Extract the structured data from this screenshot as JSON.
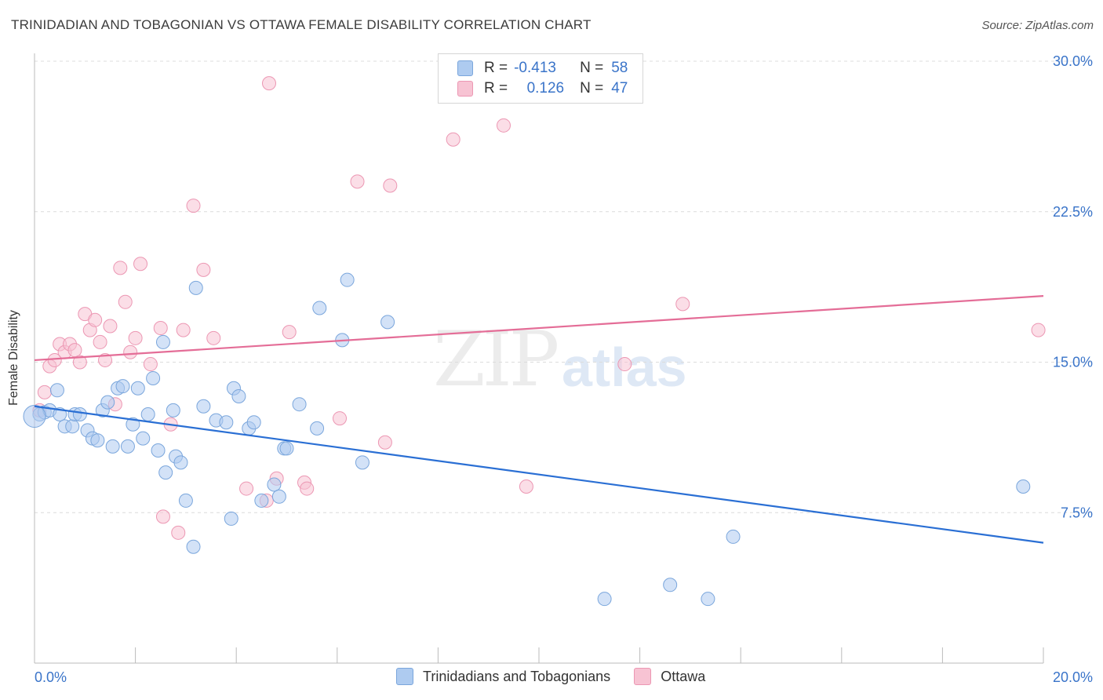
{
  "title": "TRINIDADIAN AND TOBAGONIAN VS OTTAWA FEMALE DISABILITY CORRELATION CHART",
  "source": "Source: ZipAtlas.com",
  "watermark": {
    "zip": "ZIP",
    "atlas": "atlas"
  },
  "legend": {
    "rows": [
      {
        "r_label": "R =",
        "r_value": "-0.413",
        "n_label": "N =",
        "n_value": "58"
      },
      {
        "r_label": "R =",
        "r_value": "0.126",
        "n_label": "N =",
        "n_value": "47"
      }
    ]
  },
  "colors": {
    "blue_fill": "#aecbf0",
    "blue_stroke": "#7aa6dc",
    "blue_line": "#2a6fd4",
    "pink_fill": "#f7c3d3",
    "pink_stroke": "#ec97b3",
    "pink_line": "#e46d97",
    "tick_label": "#3a74c9"
  },
  "chart_data": {
    "type": "scatter",
    "title": "TRINIDADIAN AND TOBAGONIAN VS OTTAWA FEMALE DISABILITY CORRELATION CHART",
    "xlabel": "",
    "ylabel": "Female Disability",
    "xlim": [
      0,
      20
    ],
    "ylim": [
      0,
      30
    ],
    "x_tick_labels": [
      "0.0%",
      "20.0%"
    ],
    "y_ticks": [
      7.5,
      15,
      22.5,
      30
    ],
    "y_tick_labels": [
      "7.5%",
      "15.0%",
      "22.5%",
      "30.0%"
    ],
    "grid": true,
    "legend_position": "bottom-center",
    "series": [
      {
        "name": "Trinidadians and Tobagonians",
        "color": "#aecbf0",
        "trend": {
          "x": [
            0,
            20
          ],
          "y": [
            12.8,
            6.0
          ]
        },
        "points": [
          [
            0.1,
            12.4
          ],
          [
            0.2,
            12.5
          ],
          [
            0.3,
            12.6
          ],
          [
            0.45,
            13.6
          ],
          [
            0.5,
            12.4
          ],
          [
            0.6,
            11.8
          ],
          [
            0.75,
            11.8
          ],
          [
            0.8,
            12.4
          ],
          [
            0.9,
            12.4
          ],
          [
            1.05,
            11.6
          ],
          [
            1.15,
            11.2
          ],
          [
            1.25,
            11.1
          ],
          [
            1.35,
            12.6
          ],
          [
            1.45,
            13.0
          ],
          [
            1.55,
            10.8
          ],
          [
            1.65,
            13.7
          ],
          [
            1.75,
            13.8
          ],
          [
            1.85,
            10.8
          ],
          [
            1.95,
            11.9
          ],
          [
            2.05,
            13.7
          ],
          [
            2.15,
            11.2
          ],
          [
            2.25,
            12.4
          ],
          [
            2.35,
            14.2
          ],
          [
            2.45,
            10.6
          ],
          [
            2.55,
            16.0
          ],
          [
            2.6,
            9.5
          ],
          [
            2.75,
            12.6
          ],
          [
            2.8,
            10.3
          ],
          [
            2.9,
            10.0
          ],
          [
            3.0,
            8.1
          ],
          [
            3.15,
            5.8
          ],
          [
            3.2,
            18.7
          ],
          [
            3.35,
            12.8
          ],
          [
            3.6,
            12.1
          ],
          [
            3.8,
            12.0
          ],
          [
            3.9,
            7.2
          ],
          [
            3.95,
            13.7
          ],
          [
            4.05,
            13.3
          ],
          [
            4.25,
            11.7
          ],
          [
            4.35,
            12.0
          ],
          [
            4.5,
            8.1
          ],
          [
            4.75,
            8.9
          ],
          [
            4.85,
            8.3
          ],
          [
            4.95,
            10.7
          ],
          [
            5.0,
            10.7
          ],
          [
            5.25,
            12.9
          ],
          [
            5.6,
            11.7
          ],
          [
            5.65,
            17.7
          ],
          [
            6.1,
            16.1
          ],
          [
            6.2,
            19.1
          ],
          [
            6.5,
            10.0
          ],
          [
            7.0,
            17.0
          ],
          [
            11.3,
            3.2
          ],
          [
            12.6,
            3.9
          ],
          [
            13.35,
            3.2
          ],
          [
            13.85,
            6.3
          ],
          [
            19.6,
            8.8
          ],
          [
            0.0,
            12.3
          ]
        ]
      },
      {
        "name": "Ottawa",
        "color": "#f7c3d3",
        "trend": {
          "x": [
            0,
            20
          ],
          "y": [
            15.1,
            18.3
          ]
        },
        "points": [
          [
            0.1,
            12.6
          ],
          [
            0.2,
            13.5
          ],
          [
            0.3,
            14.8
          ],
          [
            0.4,
            15.1
          ],
          [
            0.5,
            15.9
          ],
          [
            0.6,
            15.5
          ],
          [
            0.7,
            15.9
          ],
          [
            0.8,
            15.6
          ],
          [
            0.9,
            15.0
          ],
          [
            1.0,
            17.4
          ],
          [
            1.1,
            16.6
          ],
          [
            1.2,
            17.1
          ],
          [
            1.3,
            16.0
          ],
          [
            1.4,
            15.1
          ],
          [
            1.5,
            16.8
          ],
          [
            1.6,
            12.9
          ],
          [
            1.7,
            19.7
          ],
          [
            1.8,
            18.0
          ],
          [
            1.9,
            15.5
          ],
          [
            2.0,
            16.2
          ],
          [
            2.1,
            19.9
          ],
          [
            2.3,
            14.9
          ],
          [
            2.5,
            16.7
          ],
          [
            2.55,
            7.3
          ],
          [
            2.7,
            11.9
          ],
          [
            2.85,
            6.5
          ],
          [
            2.95,
            16.6
          ],
          [
            3.15,
            22.8
          ],
          [
            3.35,
            19.6
          ],
          [
            3.55,
            16.2
          ],
          [
            4.2,
            8.7
          ],
          [
            4.6,
            8.1
          ],
          [
            4.65,
            28.9
          ],
          [
            4.8,
            9.2
          ],
          [
            5.05,
            16.5
          ],
          [
            5.35,
            9.0
          ],
          [
            5.4,
            8.7
          ],
          [
            6.05,
            12.2
          ],
          [
            6.4,
            24.0
          ],
          [
            6.95,
            11.0
          ],
          [
            7.05,
            23.8
          ],
          [
            8.3,
            26.1
          ],
          [
            9.3,
            26.8
          ],
          [
            9.75,
            8.8
          ],
          [
            11.7,
            14.9
          ],
          [
            12.85,
            17.9
          ],
          [
            19.9,
            16.6
          ]
        ]
      }
    ]
  },
  "bottom_legend": [
    {
      "label": "Trinidadians and Tobagonians"
    },
    {
      "label": "Ottawa"
    }
  ]
}
